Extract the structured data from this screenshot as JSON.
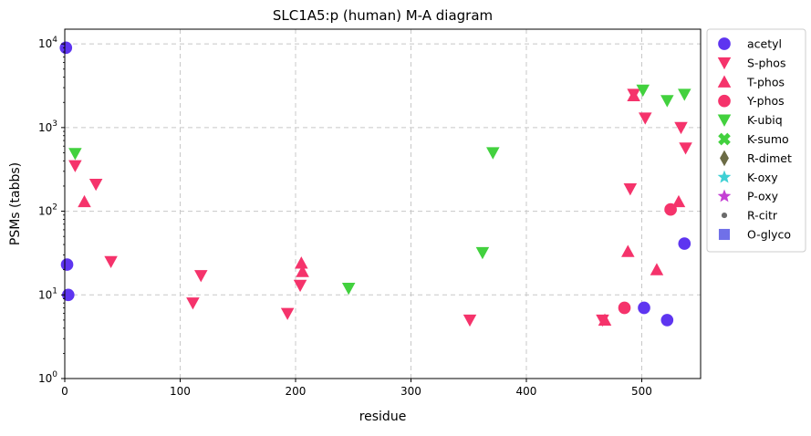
{
  "chart_data": {
    "type": "scatter",
    "title": "SLC1A5:p (human) M-A diagram",
    "xlabel": "residue",
    "ylabel": "PSMs (tabbs)",
    "xlim": [
      0,
      551
    ],
    "ylim": [
      1,
      15000
    ],
    "yscale": "log",
    "xticks": [
      0,
      100,
      200,
      300,
      400,
      500
    ],
    "yticks": [
      {
        "value": 1,
        "base": "10",
        "exp": "0"
      },
      {
        "value": 10,
        "base": "10",
        "exp": "1"
      },
      {
        "value": 100,
        "base": "10",
        "exp": "2"
      },
      {
        "value": 1000,
        "base": "10",
        "exp": "3"
      },
      {
        "value": 10000,
        "base": "10",
        "exp": "4"
      }
    ],
    "grid": true,
    "legend_position": "outside-right",
    "series": [
      {
        "name": "acetyl",
        "marker": "circle",
        "color": "#5e35f0",
        "points": [
          [
            1,
            9000
          ],
          [
            2,
            23
          ],
          [
            3,
            10
          ],
          [
            502,
            7
          ],
          [
            522,
            5
          ],
          [
            537,
            41
          ]
        ]
      },
      {
        "name": "S-phos",
        "marker": "triangle-down",
        "color": "#f5336b",
        "points": [
          [
            9,
            350
          ],
          [
            27,
            210
          ],
          [
            40,
            25
          ],
          [
            111,
            8
          ],
          [
            118,
            17
          ],
          [
            193,
            6
          ],
          [
            204,
            13
          ],
          [
            351,
            5
          ],
          [
            466,
            5
          ],
          [
            490,
            185
          ],
          [
            493,
            2500
          ],
          [
            503,
            1300
          ],
          [
            534,
            1000
          ],
          [
            538,
            570
          ]
        ]
      },
      {
        "name": "T-phos",
        "marker": "triangle-up",
        "color": "#f5336b",
        "points": [
          [
            17,
            130
          ],
          [
            205,
            24
          ],
          [
            206,
            19
          ],
          [
            468,
            5
          ],
          [
            488,
            33
          ],
          [
            493,
            2400
          ],
          [
            513,
            20
          ],
          [
            532,
            130
          ]
        ]
      },
      {
        "name": "Y-phos",
        "marker": "circle",
        "color": "#f5336b",
        "points": [
          [
            485,
            7
          ],
          [
            525,
            105
          ]
        ]
      },
      {
        "name": "K-ubiq",
        "marker": "triangle-down",
        "color": "#42d13e",
        "points": [
          [
            9,
            490
          ],
          [
            246,
            12
          ],
          [
            362,
            32
          ],
          [
            371,
            500
          ],
          [
            501,
            2800
          ],
          [
            522,
            2100
          ],
          [
            537,
            2500
          ]
        ]
      },
      {
        "name": "K-sumo",
        "marker": "x-fat",
        "color": "#42d13e",
        "points": []
      },
      {
        "name": "R-dimet",
        "marker": "diamond",
        "color": "#6b6b45",
        "points": []
      },
      {
        "name": "K-oxy",
        "marker": "star",
        "color": "#3fd0d4",
        "points": []
      },
      {
        "name": "P-oxy",
        "marker": "star",
        "color": "#c43fd4",
        "points": []
      },
      {
        "name": "R-citr",
        "marker": "dot",
        "color": "#6b6b6b",
        "points": []
      },
      {
        "name": "O-glyco",
        "marker": "square",
        "color": "#7070e8",
        "points": []
      }
    ]
  }
}
